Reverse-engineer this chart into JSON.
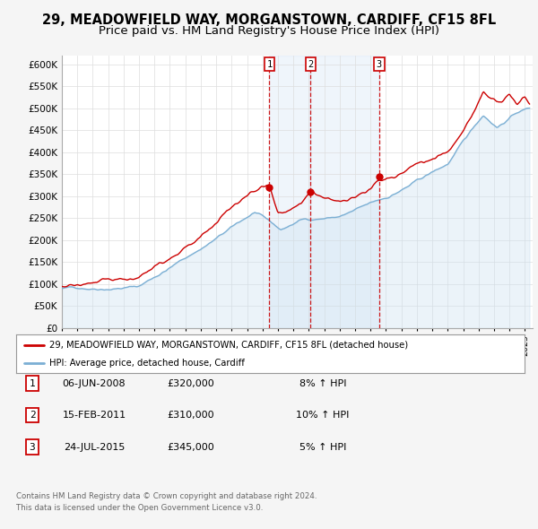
{
  "title_line1": "29, MEADOWFIELD WAY, MORGANSTOWN, CARDIFF, CF15 8FL",
  "title_line2": "Price paid vs. HM Land Registry's House Price Index (HPI)",
  "ylim": [
    0,
    620000
  ],
  "yticks": [
    0,
    50000,
    100000,
    150000,
    200000,
    250000,
    300000,
    350000,
    400000,
    450000,
    500000,
    550000,
    600000
  ],
  "ytick_labels": [
    "£0",
    "£50K",
    "£100K",
    "£150K",
    "£200K",
    "£250K",
    "£300K",
    "£350K",
    "£400K",
    "£450K",
    "£500K",
    "£550K",
    "£600K"
  ],
  "xlim_start": 1995.0,
  "xlim_end": 2025.5,
  "hpi_color": "#7bafd4",
  "hpi_fill_color": "#c8dff0",
  "price_color": "#cc0000",
  "marker_color": "#cc0000",
  "sale_dates": [
    2008.44,
    2011.12,
    2015.56
  ],
  "sale_prices": [
    320000,
    310000,
    345000
  ],
  "sale_labels": [
    "1",
    "2",
    "3"
  ],
  "sale_info": [
    {
      "label": "1",
      "date": "06-JUN-2008",
      "price": "£320,000",
      "hpi_diff": "8% ↑ HPI"
    },
    {
      "label": "2",
      "date": "15-FEB-2011",
      "price": "£310,000",
      "hpi_diff": "10% ↑ HPI"
    },
    {
      "label": "3",
      "date": "24-JUL-2015",
      "price": "£345,000",
      "hpi_diff": "5% ↑ HPI"
    }
  ],
  "legend_property_label": "29, MEADOWFIELD WAY, MORGANSTOWN, CARDIFF, CF15 8FL (detached house)",
  "legend_hpi_label": "HPI: Average price, detached house, Cardiff",
  "footer_line1": "Contains HM Land Registry data © Crown copyright and database right 2024.",
  "footer_line2": "This data is licensed under the Open Government Licence v3.0.",
  "background_color": "#f5f5f5",
  "plot_bg_color": "#ffffff",
  "grid_color": "#dddddd",
  "shade_color": "#ddeeff",
  "title_fontsize": 10.5,
  "subtitle_fontsize": 9.5
}
